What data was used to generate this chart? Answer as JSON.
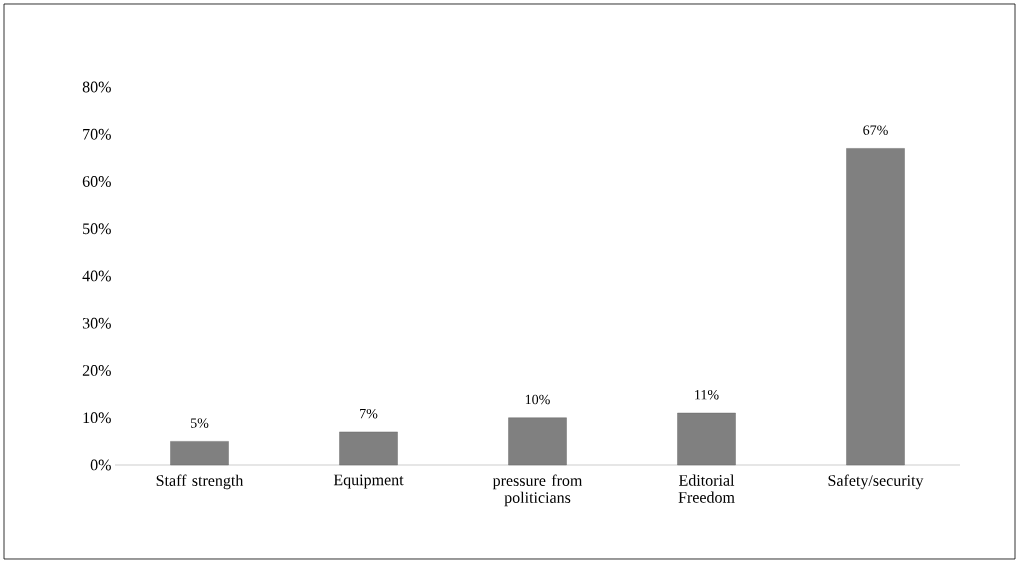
{
  "chart_data": {
    "type": "bar",
    "categories": [
      "Staff strength",
      "Equipment",
      "pressure from politicians",
      "Editorial Freedom",
      "Safety/security"
    ],
    "values": [
      5,
      7,
      10,
      11,
      67
    ],
    "value_labels": [
      "5%",
      "7%",
      "10%",
      "11%",
      "67%"
    ],
    "color": "#808080",
    "ylim": [
      0,
      80
    ],
    "yticks": [
      {
        "value": 0,
        "label": "0%"
      },
      {
        "value": 10,
        "label": "10%"
      },
      {
        "value": 20,
        "label": "20%"
      },
      {
        "value": 30,
        "label": "30%"
      },
      {
        "value": 40,
        "label": "40%"
      },
      {
        "value": 50,
        "label": "50%"
      },
      {
        "value": 60,
        "label": "60%"
      },
      {
        "value": 70,
        "label": "70%"
      },
      {
        "value": 80,
        "label": "80%"
      }
    ],
    "grid": false
  }
}
